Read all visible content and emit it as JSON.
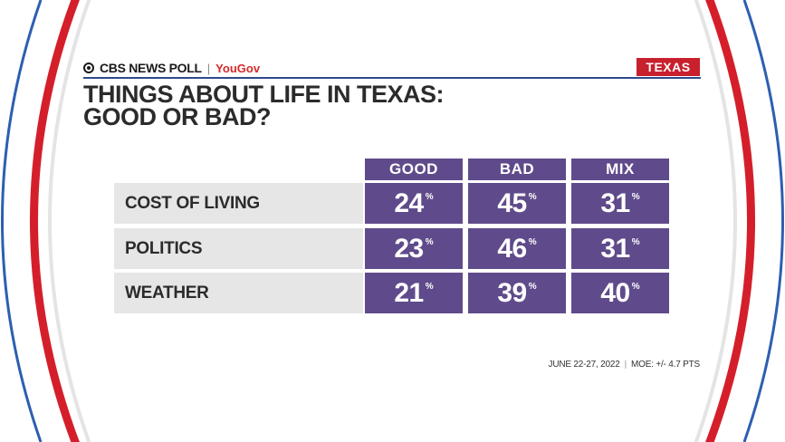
{
  "header": {
    "brand_name": "CBS NEWS POLL",
    "brand_separator": "|",
    "partner": "YouGov",
    "state_badge": "TEXAS"
  },
  "title_lines": [
    "THINGS ABOUT LIFE IN TEXAS:",
    "GOOD OR BAD?"
  ],
  "footer": {
    "dates": "JUNE 22-27, 2022",
    "separator": "|",
    "moe": "MOE: +/- 4.7 PTS"
  },
  "colors": {
    "cell": "#5f4b8b",
    "row_label_bg": "#e6e6e6",
    "badge": "#c8202d",
    "ring_red": "#d41f2b",
    "ring_blue": "#2c5fb0"
  },
  "chart_data": {
    "type": "table",
    "title": "THINGS ABOUT LIFE IN TEXAS: GOOD OR BAD?",
    "columns": [
      "GOOD",
      "BAD",
      "MIX"
    ],
    "unit": "%",
    "rows": [
      {
        "label": "COST OF LIVING",
        "values": [
          24,
          45,
          31
        ]
      },
      {
        "label": "POLITICS",
        "values": [
          23,
          46,
          31
        ]
      },
      {
        "label": "WEATHER",
        "values": [
          21,
          39,
          40
        ]
      }
    ]
  }
}
